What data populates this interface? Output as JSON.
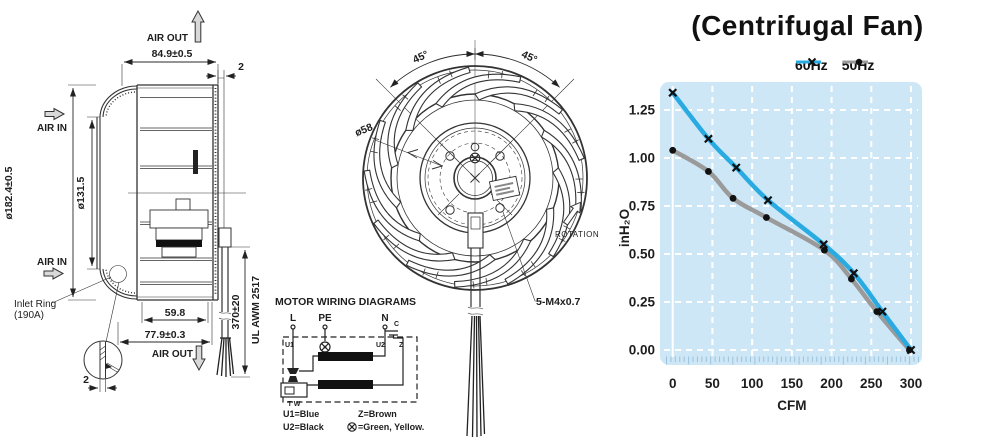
{
  "side_view": {
    "air_out_top": "AIR OUT",
    "air_out_bottom": "AIR OUT",
    "air_in_top": "AIR IN",
    "air_in_bottom": "AIR IN",
    "dim_depth_total": "84.9±0.5",
    "dim_step_top": "2",
    "dim_outer_dia": "ø182.4±0.5",
    "dim_inlet_dia": "ø131.5",
    "dim_motor_depth": "59.8",
    "dim_housing_depth": "77.9±0.3",
    "dim_lead_length": "370±20",
    "lead_spec": "UL AWM 2517",
    "inlet_ring_line1": "Inlet Ring",
    "inlet_ring_line2": "(190A)",
    "dim_ring_thickness": "2"
  },
  "front_view": {
    "angle_left": "45°",
    "angle_right": "45°",
    "dim_pitch_circle": "ø58",
    "rotation": "ROTATION",
    "screw_spec": "5-M4x0.7"
  },
  "wiring": {
    "title": "MOTOR WIRING DIAGRAMS",
    "terminal_live": "L",
    "terminal_earth": "PE",
    "terminal_neutral": "N",
    "capacitor": "C",
    "winding_u1": "U1",
    "winding_u2": "U2",
    "winding_z": "Z",
    "thermal": "T W",
    "legend_u1": "U1=Blue",
    "legend_u2": "U2=Black",
    "legend_z": "Z=Brown",
    "legend_earth": "=Green, Yellow."
  },
  "chart_data": {
    "type": "line",
    "title": "(Centrifugal Fan)",
    "xlabel": "CFM",
    "ylabel": "inH₂O",
    "xticks": [
      0,
      50,
      100,
      150,
      200,
      250,
      300
    ],
    "yticks": [
      0,
      0.25,
      0.5,
      0.75,
      1,
      1.25
    ],
    "xlim": [
      -9,
      313
    ],
    "ylim": [
      -0.07,
      1.42
    ],
    "grid": true,
    "legend_position": "top-right",
    "plot_bg": "#cde7f7",
    "grid_color": "#ffffff",
    "marker_color": "#111111",
    "series": [
      {
        "name": "60Hz",
        "color": "#29abe2",
        "marker": "x",
        "x": [
          0,
          45,
          80,
          120,
          190,
          228,
          264,
          300
        ],
        "y": [
          1.34,
          1.1,
          0.95,
          0.78,
          0.55,
          0.4,
          0.2,
          0.0
        ]
      },
      {
        "name": "50Hz",
        "color": "#9a9a9a",
        "marker": "dot",
        "x": [
          0,
          45,
          76,
          118,
          191,
          225,
          257,
          298
        ],
        "y": [
          1.04,
          0.93,
          0.79,
          0.69,
          0.52,
          0.37,
          0.2,
          0.0
        ]
      }
    ]
  }
}
